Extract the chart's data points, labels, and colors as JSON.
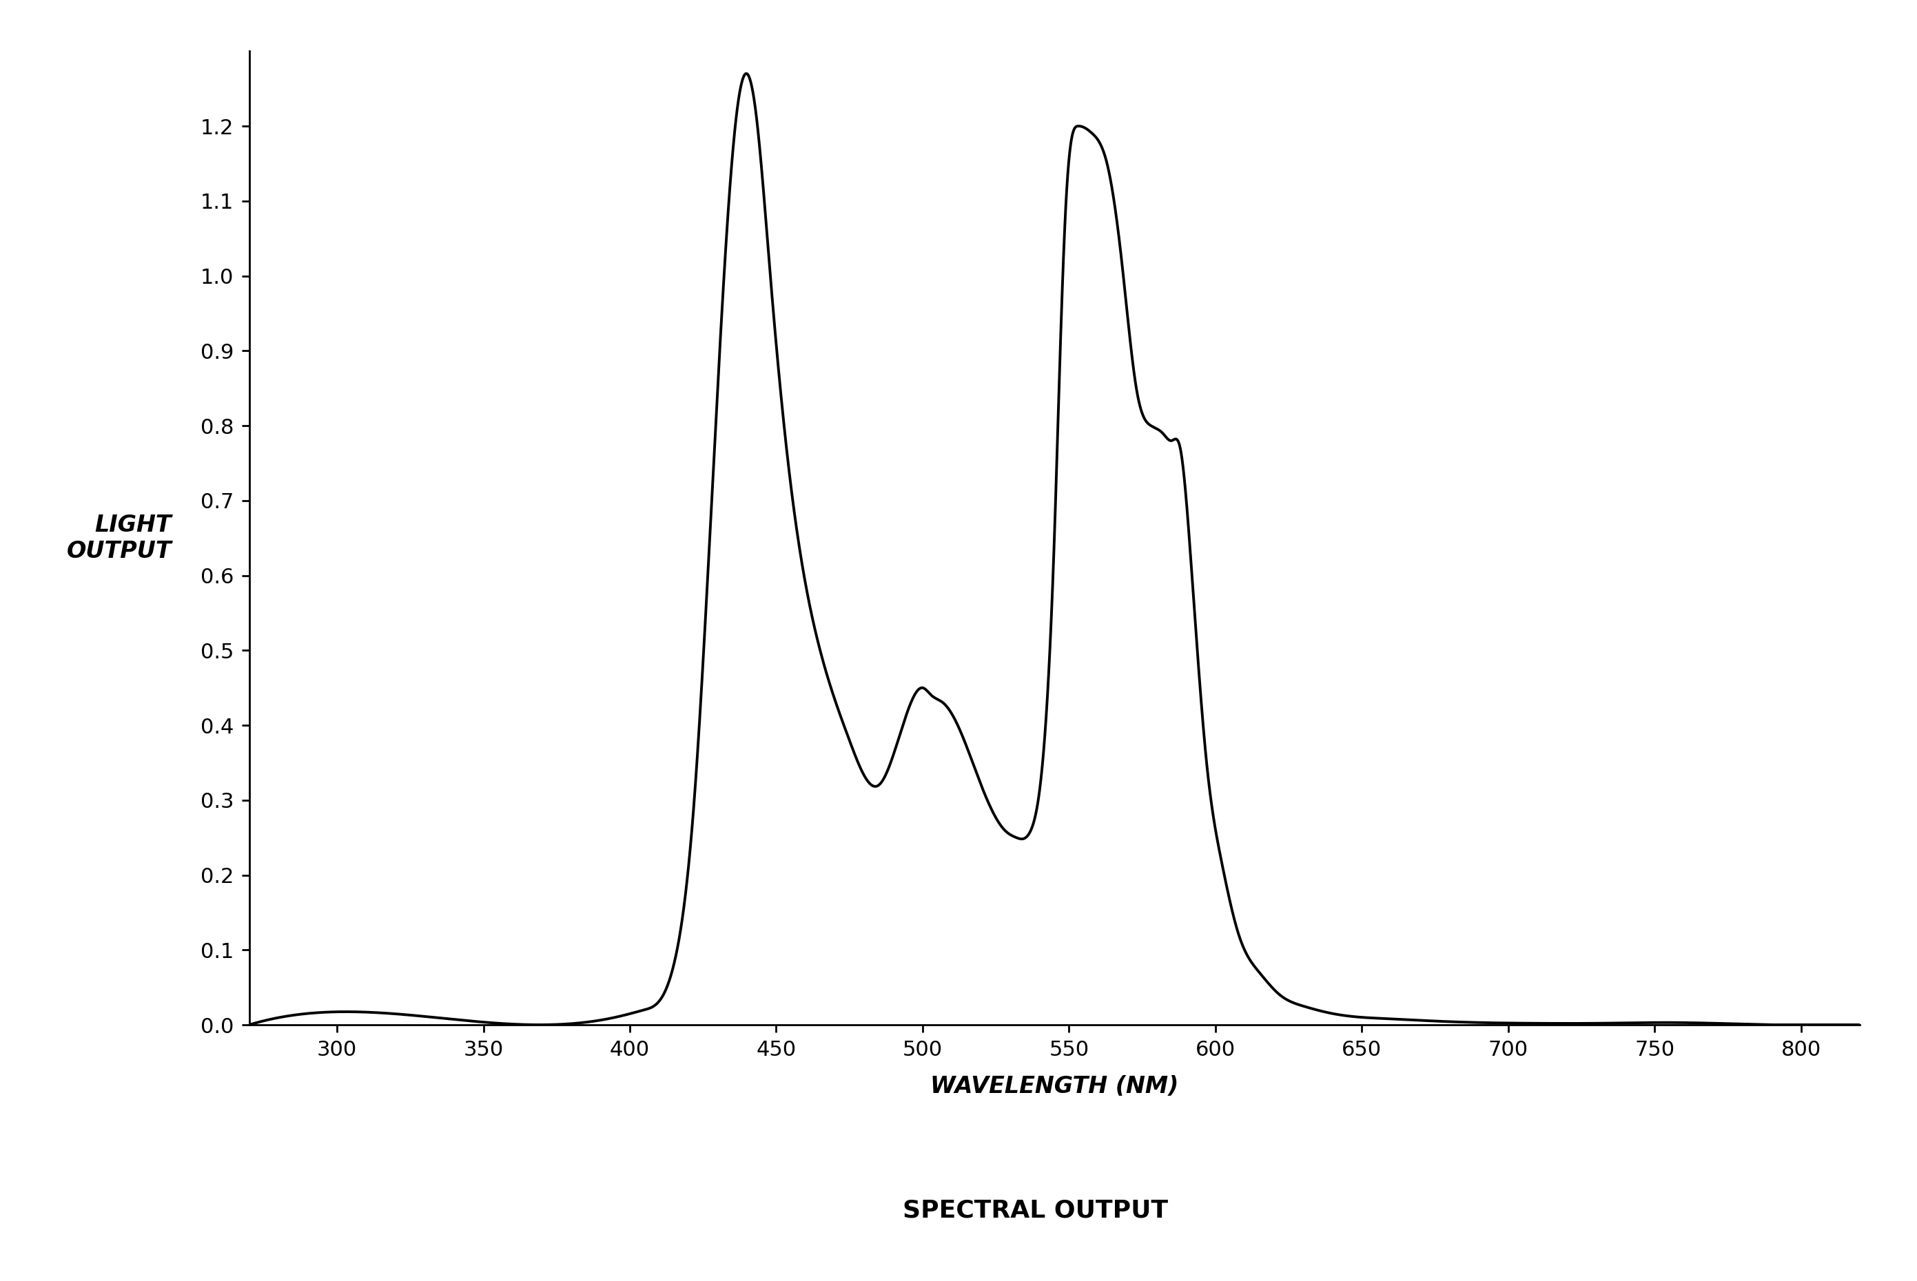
{
  "title": "SPECTRAL OUTPUT",
  "xlabel": "WAVELENGTH (NM)",
  "ylabel": "LIGHT\nOUTPUT",
  "xlim": [
    270,
    820
  ],
  "ylim": [
    0.0,
    1.3
  ],
  "xticks": [
    300,
    350,
    400,
    450,
    500,
    550,
    600,
    650,
    700,
    750,
    800
  ],
  "yticks": [
    0.0,
    0.1,
    0.2,
    0.3,
    0.4,
    0.5,
    0.6,
    0.7,
    0.8,
    0.9,
    1.0,
    1.1,
    1.2
  ],
  "line_color": "#000000",
  "line_width": 2.8,
  "background_color": "#ffffff",
  "keypoints_x": [
    270,
    370,
    388,
    395,
    405,
    415,
    422,
    430,
    436,
    440,
    443,
    448,
    455,
    465,
    475,
    485,
    495,
    500,
    503,
    507,
    512,
    520,
    528,
    532,
    537,
    542,
    545,
    547,
    549,
    553,
    558,
    563,
    568,
    573,
    578,
    582,
    585,
    588,
    592,
    597,
    602,
    608,
    615,
    622,
    630,
    640,
    650,
    660,
    675,
    690,
    710,
    730,
    755,
    780,
    820
  ],
  "keypoints_y": [
    0.0,
    0.0,
    0.005,
    0.01,
    0.02,
    0.08,
    0.3,
    0.85,
    1.2,
    1.27,
    1.22,
    1.0,
    0.72,
    0.5,
    0.38,
    0.32,
    0.42,
    0.45,
    0.44,
    0.43,
    0.4,
    0.32,
    0.26,
    0.25,
    0.26,
    0.4,
    0.65,
    0.9,
    1.1,
    1.2,
    1.19,
    1.15,
    1.02,
    0.85,
    0.8,
    0.79,
    0.78,
    0.77,
    0.6,
    0.35,
    0.22,
    0.12,
    0.07,
    0.04,
    0.025,
    0.015,
    0.01,
    0.008,
    0.005,
    0.003,
    0.002,
    0.002,
    0.003,
    0.001,
    0.0
  ],
  "title_fontsize": 26,
  "label_fontsize": 24,
  "tick_fontsize": 22,
  "ylabel_fontsize": 24
}
